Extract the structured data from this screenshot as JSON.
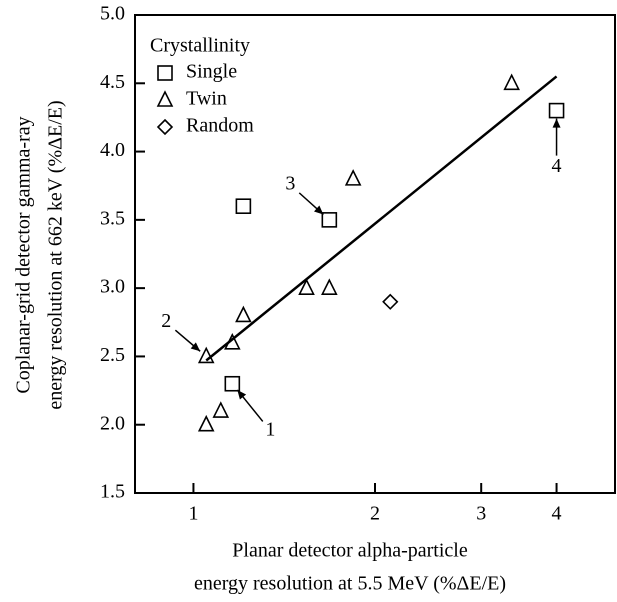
{
  "chart_data": {
    "type": "scatter",
    "x_label": [
      "Planar detector alpha-particle",
      "energy resolution at 5.5 MeV (%ΔE/E)"
    ],
    "y_label": [
      "Coplanar-grid detector gamma-ray",
      "energy resolution at 662 keV (%ΔE/E)"
    ],
    "xscale": "log",
    "xlim": [
      0.8,
      5
    ],
    "xticks": [
      1,
      2,
      3,
      4
    ],
    "ylim": [
      1.5,
      5.0
    ],
    "yticks": [
      1.5,
      {
        "value": 2,
        "label": "2.0"
      },
      2.5,
      {
        "value": 3,
        "label": "3.0"
      },
      3.5,
      {
        "value": 4,
        "label": "4.0"
      },
      4.5,
      {
        "value": 5,
        "label": "5.0"
      }
    ],
    "legend_title": "Crystallinity",
    "legend": "upper left",
    "series": [
      {
        "name": "Single",
        "marker": "square",
        "color": "#000000",
        "x": [
          1.16,
          1.21,
          1.68,
          4.0
        ],
        "values": [
          2.3,
          3.6,
          3.5,
          4.3
        ]
      },
      {
        "name": "Twin",
        "marker": "triangle",
        "color": "#000000",
        "x": [
          1.05,
          1.16,
          1.21,
          1.05,
          1.11,
          1.54,
          1.68,
          1.84,
          3.37
        ],
        "values": [
          2.5,
          2.6,
          2.8,
          2.0,
          2.1,
          3.0,
          3.0,
          3.8,
          4.5
        ]
      },
      {
        "name": "Random",
        "marker": "diamond",
        "color": "#000000",
        "x": [
          2.12
        ],
        "values": [
          2.9
        ]
      }
    ],
    "fit_line": {
      "x": [
        1.05,
        4.0
      ],
      "values": [
        2.47,
        4.55
      ]
    },
    "annotations": [
      {
        "text": "1",
        "x": 1.16,
        "y": 2.3
      },
      {
        "text": "2",
        "x": 1.05,
        "y": 2.5
      },
      {
        "text": "3",
        "x": 1.68,
        "y": 3.5
      },
      {
        "text": "4",
        "x": 4.0,
        "y": 4.3
      }
    ]
  }
}
